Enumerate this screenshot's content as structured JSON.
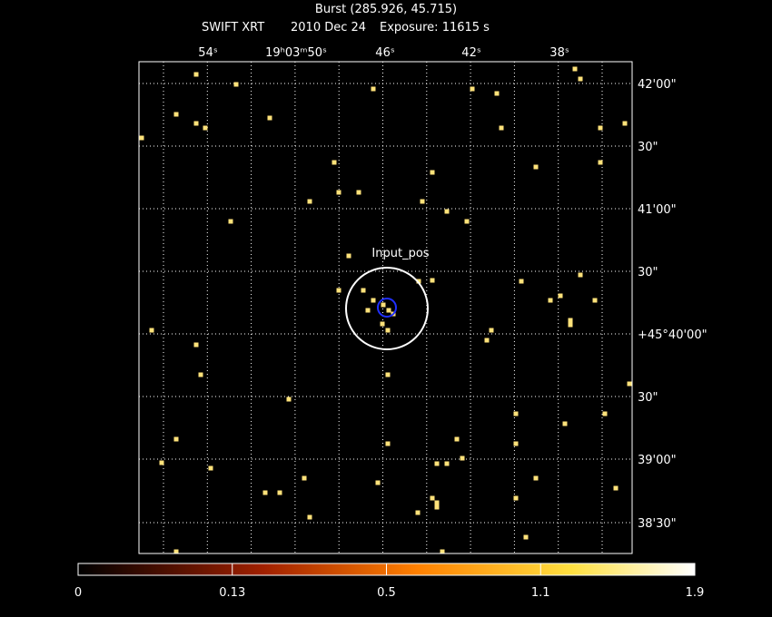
{
  "header": {
    "title": "Burst (285.926, 45.715)",
    "instrument": "SWIFT XRT",
    "date": "2010 Dec 24",
    "exposure": "Exposure: 11615 s"
  },
  "ra_labels": [
    "54ˢ",
    "19ʰ03ᵐ50ˢ",
    "46ˢ",
    "42ˢ",
    "38ˢ"
  ],
  "dec_labels": [
    "42'00\"",
    "30\"",
    "41'00\"",
    "30\"",
    "+45°40'00\"",
    "30\"",
    "39'00\"",
    "38'30\""
  ],
  "annotation": "Input_pos",
  "colorbar": {
    "labels": [
      "0",
      "0.13",
      "0.5",
      "1.1",
      "1.9"
    ]
  }
}
